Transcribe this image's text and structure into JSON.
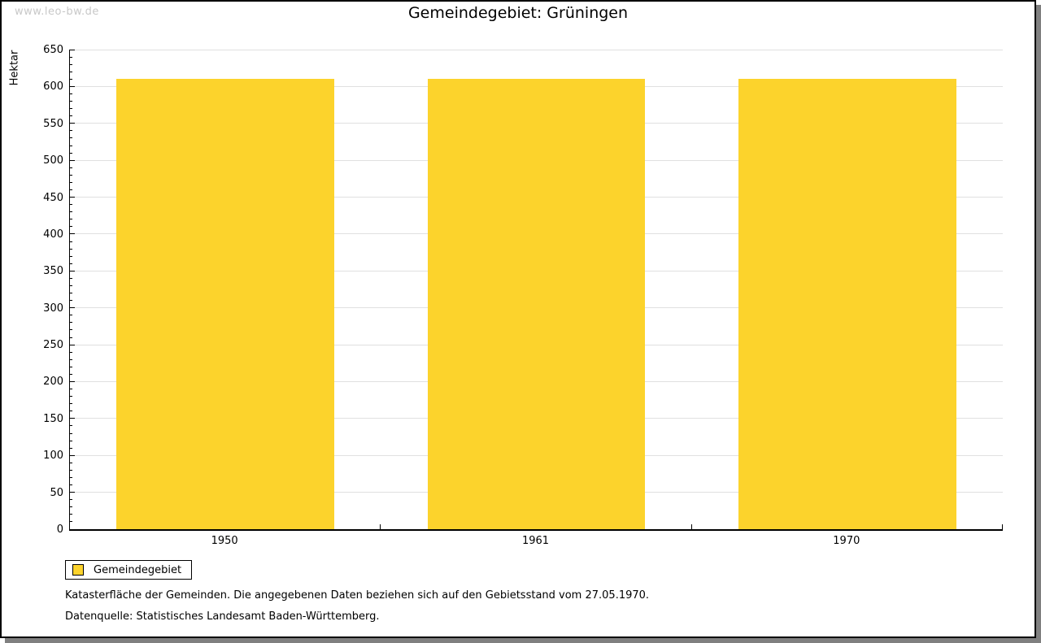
{
  "watermark": "www.leo-bw.de",
  "header": {
    "title": "Gemeindegebiet: Grüningen"
  },
  "chart_data": {
    "type": "bar",
    "title": "Gemeindegebiet: Grüningen",
    "ylabel": "Hektar",
    "categories": [
      "1950",
      "1961",
      "1970"
    ],
    "series": [
      {
        "name": "Gemeindegebiet",
        "values": [
          610,
          610,
          610
        ]
      }
    ],
    "ylim": [
      0,
      650
    ],
    "y_major_step": 50,
    "y_minor_step": 10,
    "grid": true,
    "bar_color": "#FCD32C",
    "grid_color": "#E0E0E0",
    "axis_color": "#000000",
    "legend_position": "bottom-left",
    "bar_width_fraction": 0.7
  },
  "legend": {
    "items": [
      {
        "label": "Gemeindegebiet",
        "color": "#FCD32C"
      }
    ]
  },
  "footnotes": {
    "line1": "Katasterfläche der Gemeinden. Die angegebenen Daten beziehen sich auf den Gebietsstand vom 27.05.1970.",
    "line2": "Datenquelle: Statistisches Landesamt Baden-Württemberg."
  }
}
